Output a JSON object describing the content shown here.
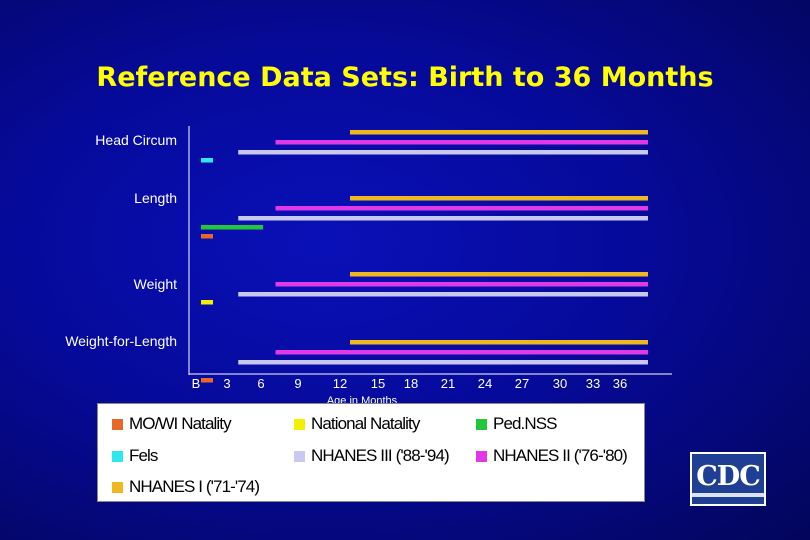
{
  "title": "Reference Data Sets: Birth to 36 Months",
  "chart_data": {
    "type": "range-bar",
    "title": "Reference Data Sets: Birth to 36 Months",
    "xlabel": "Age in Months",
    "ylabel": "",
    "xlim": [
      0,
      36
    ],
    "x_ticks": [
      {
        "value": 0,
        "label": "B"
      },
      {
        "value": 3,
        "label": "3"
      },
      {
        "value": 6,
        "label": "6"
      },
      {
        "value": 9,
        "label": "9"
      },
      {
        "value": 12,
        "label": "12"
      },
      {
        "value": 15,
        "label": "15"
      },
      {
        "value": 18,
        "label": "18"
      },
      {
        "value": 21,
        "label": "21"
      },
      {
        "value": 24,
        "label": "24"
      },
      {
        "value": 27,
        "label": "27"
      },
      {
        "value": 30,
        "label": "30"
      },
      {
        "value": 33,
        "label": "33"
      },
      {
        "value": 36,
        "label": "36"
      }
    ],
    "categories": [
      "Head Circum",
      "Length",
      "Weight",
      "Weight-for-Length"
    ],
    "series": [
      {
        "name": "MO/WI Natality",
        "color": "#e8682a",
        "ranges": {
          "Length": [
            0,
            1
          ],
          "Weight-for-Length": [
            0,
            1
          ]
        }
      },
      {
        "name": "National Natality",
        "color": "#f0f000",
        "ranges": {
          "Weight": [
            0,
            1
          ]
        }
      },
      {
        "name": "Ped.NSS",
        "color": "#22c83a",
        "ranges": {
          "Length": [
            0,
            5
          ]
        }
      },
      {
        "name": "Fels",
        "color": "#2ee8f0",
        "ranges": {
          "Head Circum": [
            0,
            1
          ]
        }
      },
      {
        "name": "NHANES III ('88-'94)",
        "color": "#c8c8f0",
        "ranges": {
          "Head Circum": [
            3,
            36
          ],
          "Length": [
            3,
            36
          ],
          "Weight": [
            3,
            36
          ],
          "Weight-for-Length": [
            3,
            36
          ]
        }
      },
      {
        "name": "NHANES II ('76-'80)",
        "color": "#e03ae8",
        "ranges": {
          "Head Circum": [
            6,
            36
          ],
          "Length": [
            6,
            36
          ],
          "Weight": [
            6,
            36
          ],
          "Weight-for-Length": [
            6,
            36
          ]
        }
      },
      {
        "name": "NHANES I ('71-'74)",
        "color": "#f0b820",
        "ranges": {
          "Head Circum": [
            12,
            36
          ],
          "Length": [
            12,
            36
          ],
          "Weight": [
            12,
            36
          ],
          "Weight-for-Length": [
            12,
            36
          ]
        }
      }
    ]
  },
  "legend": [
    {
      "label": "MO/WI Natality",
      "color": "#e8682a"
    },
    {
      "label": "National Natality",
      "color": "#f0f000"
    },
    {
      "label": "Ped.NSS",
      "color": "#22c83a"
    },
    {
      "label": "Fels",
      "color": "#2ee8f0"
    },
    {
      "label": "NHANES III ('88-'94)",
      "color": "#c8c8f0"
    },
    {
      "label": "NHANES II ('76-'80)",
      "color": "#e03ae8"
    },
    {
      "label": "NHANES I ('71-'74)",
      "color": "#f0b820"
    }
  ],
  "logo": {
    "text": "CDC"
  }
}
